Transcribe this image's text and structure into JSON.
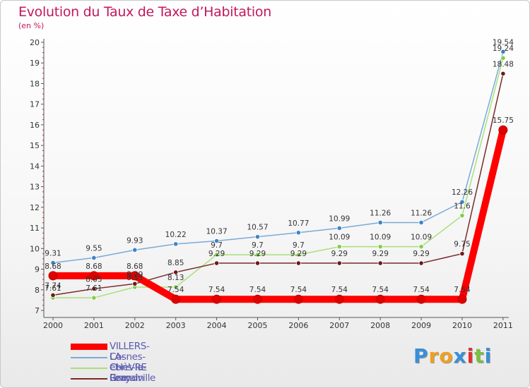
{
  "title": "Evolution du Taux de Taxe d’Habitation",
  "unit": "(en %)",
  "logo": {
    "text": "Proxiti",
    "letter_colors": [
      "#3a8fd8",
      "#f0a020",
      "#f0a020",
      "#3a8fd8",
      "#e03030",
      "#7ac142",
      "#3a8fd8"
    ]
  },
  "chart_data": {
    "type": "line",
    "x": [
      "2000",
      "2001",
      "2002",
      "2003",
      "2004",
      "2005",
      "2006",
      "2007",
      "2008",
      "2009",
      "2010",
      "2011"
    ],
    "ylim": [
      7,
      20
    ],
    "yticks": [
      "7",
      "8",
      "9",
      "10",
      "11",
      "12",
      "13",
      "14",
      "15",
      "16",
      "17",
      "18",
      "19",
      "20"
    ],
    "grid": false,
    "legend": "bottom-left",
    "series": [
      {
        "name": "VILLERS-LA-CHèVRE",
        "color": "#ff0000",
        "marker": "#e00000",
        "values": [
          8.68,
          8.68,
          8.68,
          7.54,
          7.54,
          7.54,
          7.54,
          7.54,
          7.54,
          7.54,
          7.54,
          15.75
        ],
        "labels": [
          "8.68",
          "8.68",
          "8.68",
          "7.54",
          "7.54",
          "7.54",
          "7.54",
          "7.54",
          "7.54",
          "7.54",
          "7.54",
          "15.75"
        ]
      },
      {
        "name": "Cosnes-et-Romain",
        "color": "#7aaad8",
        "marker": "#3f84c8",
        "values": [
          9.31,
          9.55,
          9.93,
          10.22,
          10.37,
          10.57,
          10.77,
          10.99,
          11.26,
          11.26,
          12.26,
          19.54
        ],
        "labels": [
          "9.31",
          "9.55",
          "9.93",
          "10.22",
          "10.37",
          "10.57",
          "10.77",
          "10.99",
          "11.26",
          "11.26",
          "12.26",
          "19.54"
        ]
      },
      {
        "name": "Cons-la-Grandville",
        "color": "#a8e07a",
        "marker": "#84cc4a",
        "values": [
          7.61,
          7.61,
          8.13,
          8.13,
          9.7,
          9.7,
          9.7,
          10.09,
          10.09,
          10.09,
          11.6,
          19.24
        ],
        "labels": [
          "7.61",
          "7.61",
          "8.13",
          "8.13",
          "9.7",
          "9.7",
          "9.7",
          "10.09",
          "10.09",
          "10.09",
          "11.6",
          "19.24"
        ]
      },
      {
        "name": "Lexy",
        "color": "#7a2a2a",
        "marker": "#6a1a1a",
        "values": [
          7.74,
          8.05,
          8.29,
          8.85,
          9.29,
          9.29,
          9.29,
          9.29,
          9.29,
          9.29,
          9.75,
          18.48
        ],
        "labels": [
          "7.74",
          "8.05",
          "8.29",
          "8.85",
          "9.29",
          "9.29",
          "9.29",
          "9.29",
          "9.29",
          "9.29",
          "9.75",
          "18.48"
        ]
      }
    ]
  }
}
